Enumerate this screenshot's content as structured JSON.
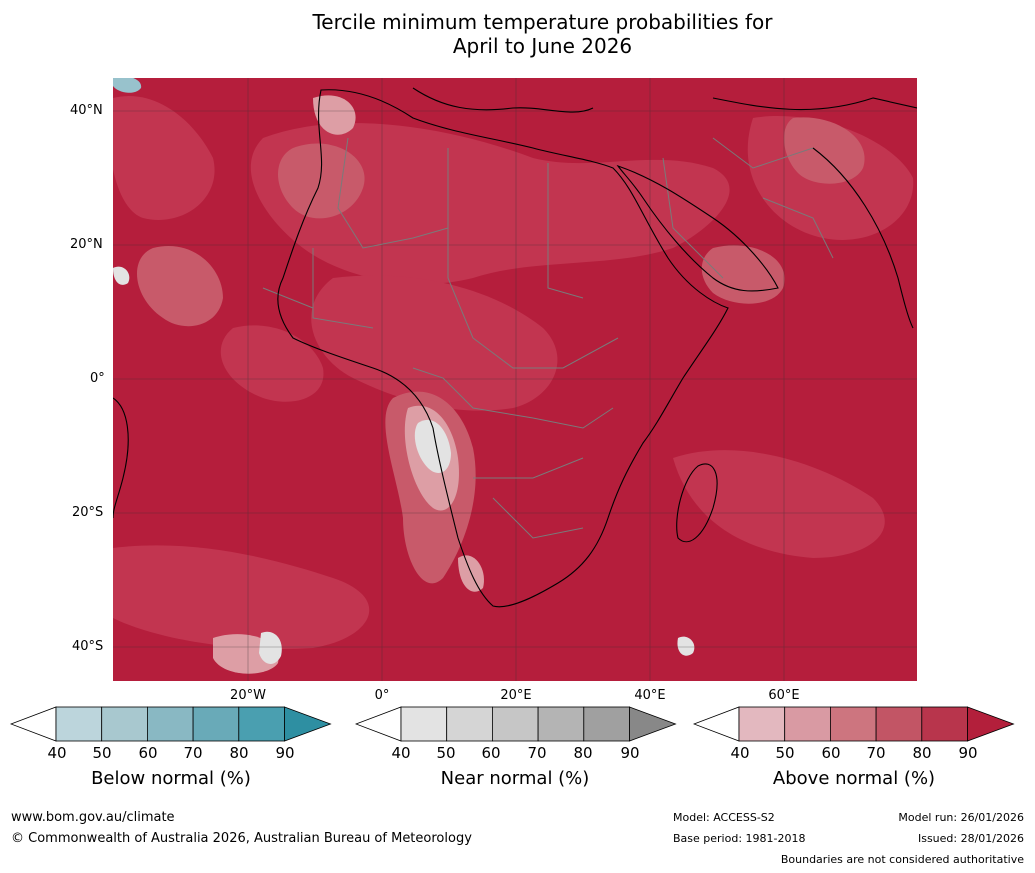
{
  "title": {
    "line1": "Tercile minimum temperature probabilities for",
    "line2": "April to June 2026"
  },
  "map": {
    "lat_labels": [
      "40°N",
      "20°N",
      "0°",
      "20°S",
      "40°S"
    ],
    "lon_labels": [
      "20°W",
      "0°",
      "20°E",
      "40°E",
      "60°E"
    ],
    "colors": {
      "above_dominant": "#b51e3c",
      "above_80": "#c23550",
      "above_70": "#c85a6a",
      "above_60": "#d27d87",
      "above_50": "#dd9ea5",
      "near": "#e3e3e3",
      "below": "#98c2cc",
      "land_border": "#7a7a7a",
      "coastline": "#000000"
    }
  },
  "colorbars": [
    {
      "label": "Below normal (%)",
      "ticks": [
        "40",
        "50",
        "60",
        "70",
        "80",
        "90"
      ],
      "colors": [
        "#ffffff",
        "#bcd5dc",
        "#a8c8cf",
        "#89b8c3",
        "#69aab8",
        "#4a9fb0",
        "#2e8fa2"
      ]
    },
    {
      "label": "Near normal (%)",
      "ticks": [
        "40",
        "50",
        "60",
        "70",
        "80",
        "90"
      ],
      "colors": [
        "#ffffff",
        "#e3e3e3",
        "#d5d5d5",
        "#c6c6c6",
        "#b4b4b4",
        "#a0a0a0",
        "#888888"
      ]
    },
    {
      "label": "Above normal (%)",
      "ticks": [
        "40",
        "50",
        "60",
        "70",
        "80",
        "90"
      ],
      "colors": [
        "#ffffff",
        "#e3b8bf",
        "#d99aa3",
        "#cd757f",
        "#c25565",
        "#b8354c",
        "#b31f3b"
      ]
    }
  ],
  "footer": {
    "website": "www.bom.gov.au/climate",
    "copyright": "© Commonwealth of Australia 2026, Australian Bureau of Meteorology",
    "model": "Model: ACCESS-S2",
    "base_period": "Base period: 1981-2018",
    "model_run": "Model run: 26/01/2026",
    "issued": "Issued: 28/01/2026",
    "disclaimer": "Boundaries are not considered authoritative"
  }
}
